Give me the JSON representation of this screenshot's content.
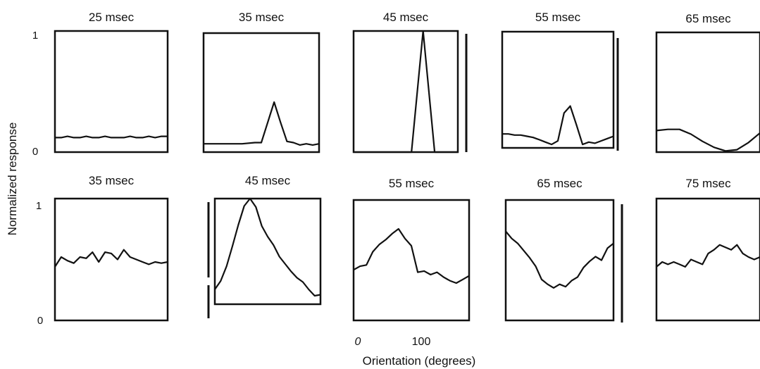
{
  "figure": {
    "ylabel": "Normalized response",
    "xlabel": "Orientation (degrees)",
    "y_ticks": [
      "1",
      "0"
    ],
    "x_ticks": [
      "0",
      "100"
    ]
  },
  "chart_data": [
    {
      "type": "line",
      "row": 1,
      "title": "25 msec",
      "xlim": [
        0,
        180
      ],
      "ylim": [
        0,
        1
      ],
      "x": [
        0,
        10,
        20,
        30,
        40,
        50,
        60,
        70,
        80,
        90,
        100,
        110,
        120,
        130,
        140,
        150,
        160,
        170,
        180
      ],
      "y": [
        0.12,
        0.12,
        0.13,
        0.12,
        0.12,
        0.13,
        0.12,
        0.12,
        0.13,
        0.12,
        0.12,
        0.12,
        0.13,
        0.12,
        0.12,
        0.13,
        0.12,
        0.13,
        0.13
      ]
    },
    {
      "type": "line",
      "row": 1,
      "title": "35 msec",
      "xlim": [
        0,
        180
      ],
      "ylim": [
        0,
        1
      ],
      "x": [
        0,
        20,
        40,
        60,
        80,
        90,
        100,
        110,
        120,
        130,
        140,
        150,
        160,
        170,
        180
      ],
      "y": [
        0.07,
        0.07,
        0.07,
        0.07,
        0.08,
        0.08,
        0.25,
        0.42,
        0.25,
        0.09,
        0.08,
        0.06,
        0.07,
        0.06,
        0.07
      ]
    },
    {
      "type": "line",
      "row": 1,
      "title": "45 msec",
      "xlim": [
        0,
        180
      ],
      "ylim": [
        0,
        1
      ],
      "x": [
        0,
        30,
        60,
        90,
        100,
        120,
        140,
        160,
        180
      ],
      "y": [
        0,
        0,
        0,
        0,
        0,
        1.0,
        0,
        0,
        0
      ]
    },
    {
      "type": "line",
      "row": 1,
      "title": "55 msec",
      "xlim": [
        0,
        180
      ],
      "ylim": [
        0,
        1
      ],
      "x": [
        0,
        10,
        20,
        30,
        40,
        50,
        60,
        70,
        80,
        90,
        100,
        110,
        120,
        130,
        140,
        150,
        160,
        170,
        180
      ],
      "y": [
        0.12,
        0.12,
        0.11,
        0.11,
        0.1,
        0.09,
        0.07,
        0.05,
        0.03,
        0.06,
        0.3,
        0.36,
        0.2,
        0.03,
        0.05,
        0.04,
        0.06,
        0.08,
        0.1
      ]
    },
    {
      "type": "line",
      "row": 1,
      "title": "65 msec",
      "xlim": [
        0,
        180
      ],
      "ylim": [
        0,
        1
      ],
      "x": [
        0,
        20,
        40,
        60,
        80,
        100,
        120,
        140,
        160,
        180
      ],
      "y": [
        0.18,
        0.19,
        0.19,
        0.15,
        0.09,
        0.04,
        0.01,
        0.02,
        0.08,
        0.16
      ]
    },
    {
      "type": "line",
      "row": 2,
      "title": "35 msec",
      "xlim": [
        0,
        180
      ],
      "ylim": [
        0,
        1
      ],
      "x": [
        0,
        10,
        20,
        30,
        40,
        50,
        60,
        70,
        80,
        90,
        100,
        110,
        120,
        130,
        140,
        150,
        160,
        170,
        180
      ],
      "y": [
        0.44,
        0.52,
        0.49,
        0.47,
        0.52,
        0.51,
        0.56,
        0.48,
        0.56,
        0.55,
        0.5,
        0.58,
        0.52,
        0.5,
        0.48,
        0.46,
        0.48,
        0.47,
        0.48
      ]
    },
    {
      "type": "line",
      "row": 2,
      "title": "45 msec",
      "xlim": [
        0,
        180
      ],
      "ylim": [
        0,
        1
      ],
      "x": [
        0,
        10,
        20,
        30,
        40,
        50,
        60,
        70,
        80,
        90,
        100,
        110,
        120,
        130,
        140,
        150,
        160,
        170,
        180
      ],
      "y": [
        0.14,
        0.22,
        0.36,
        0.55,
        0.75,
        0.93,
        1.0,
        0.92,
        0.74,
        0.64,
        0.56,
        0.45,
        0.38,
        0.31,
        0.25,
        0.21,
        0.14,
        0.08,
        0.09
      ]
    },
    {
      "type": "line",
      "row": 2,
      "title": "55 msec",
      "xlim": [
        0,
        180
      ],
      "ylim": [
        0,
        1
      ],
      "x": [
        0,
        10,
        20,
        30,
        40,
        50,
        60,
        70,
        80,
        90,
        100,
        110,
        120,
        130,
        140,
        150,
        160,
        170,
        180
      ],
      "y": [
        0.42,
        0.45,
        0.46,
        0.57,
        0.63,
        0.67,
        0.72,
        0.76,
        0.68,
        0.62,
        0.4,
        0.41,
        0.38,
        0.4,
        0.36,
        0.33,
        0.31,
        0.34,
        0.37
      ]
    },
    {
      "type": "line",
      "row": 2,
      "title": "65 msec",
      "xlim": [
        0,
        180
      ],
      "ylim": [
        0,
        1
      ],
      "x": [
        0,
        10,
        20,
        30,
        40,
        50,
        60,
        70,
        80,
        90,
        100,
        110,
        120,
        130,
        140,
        150,
        160,
        170,
        180
      ],
      "y": [
        0.74,
        0.68,
        0.64,
        0.58,
        0.52,
        0.45,
        0.34,
        0.3,
        0.27,
        0.3,
        0.28,
        0.33,
        0.36,
        0.44,
        0.49,
        0.53,
        0.5,
        0.6,
        0.64
      ]
    },
    {
      "type": "line",
      "row": 2,
      "title": "75 msec",
      "xlim": [
        0,
        180
      ],
      "ylim": [
        0,
        1
      ],
      "x": [
        0,
        10,
        20,
        30,
        40,
        50,
        60,
        70,
        80,
        90,
        100,
        110,
        120,
        130,
        140,
        150,
        160,
        170,
        180
      ],
      "y": [
        0.44,
        0.48,
        0.46,
        0.48,
        0.46,
        0.44,
        0.5,
        0.48,
        0.46,
        0.55,
        0.58,
        0.62,
        0.6,
        0.58,
        0.62,
        0.55,
        0.52,
        0.5,
        0.52
      ]
    }
  ]
}
